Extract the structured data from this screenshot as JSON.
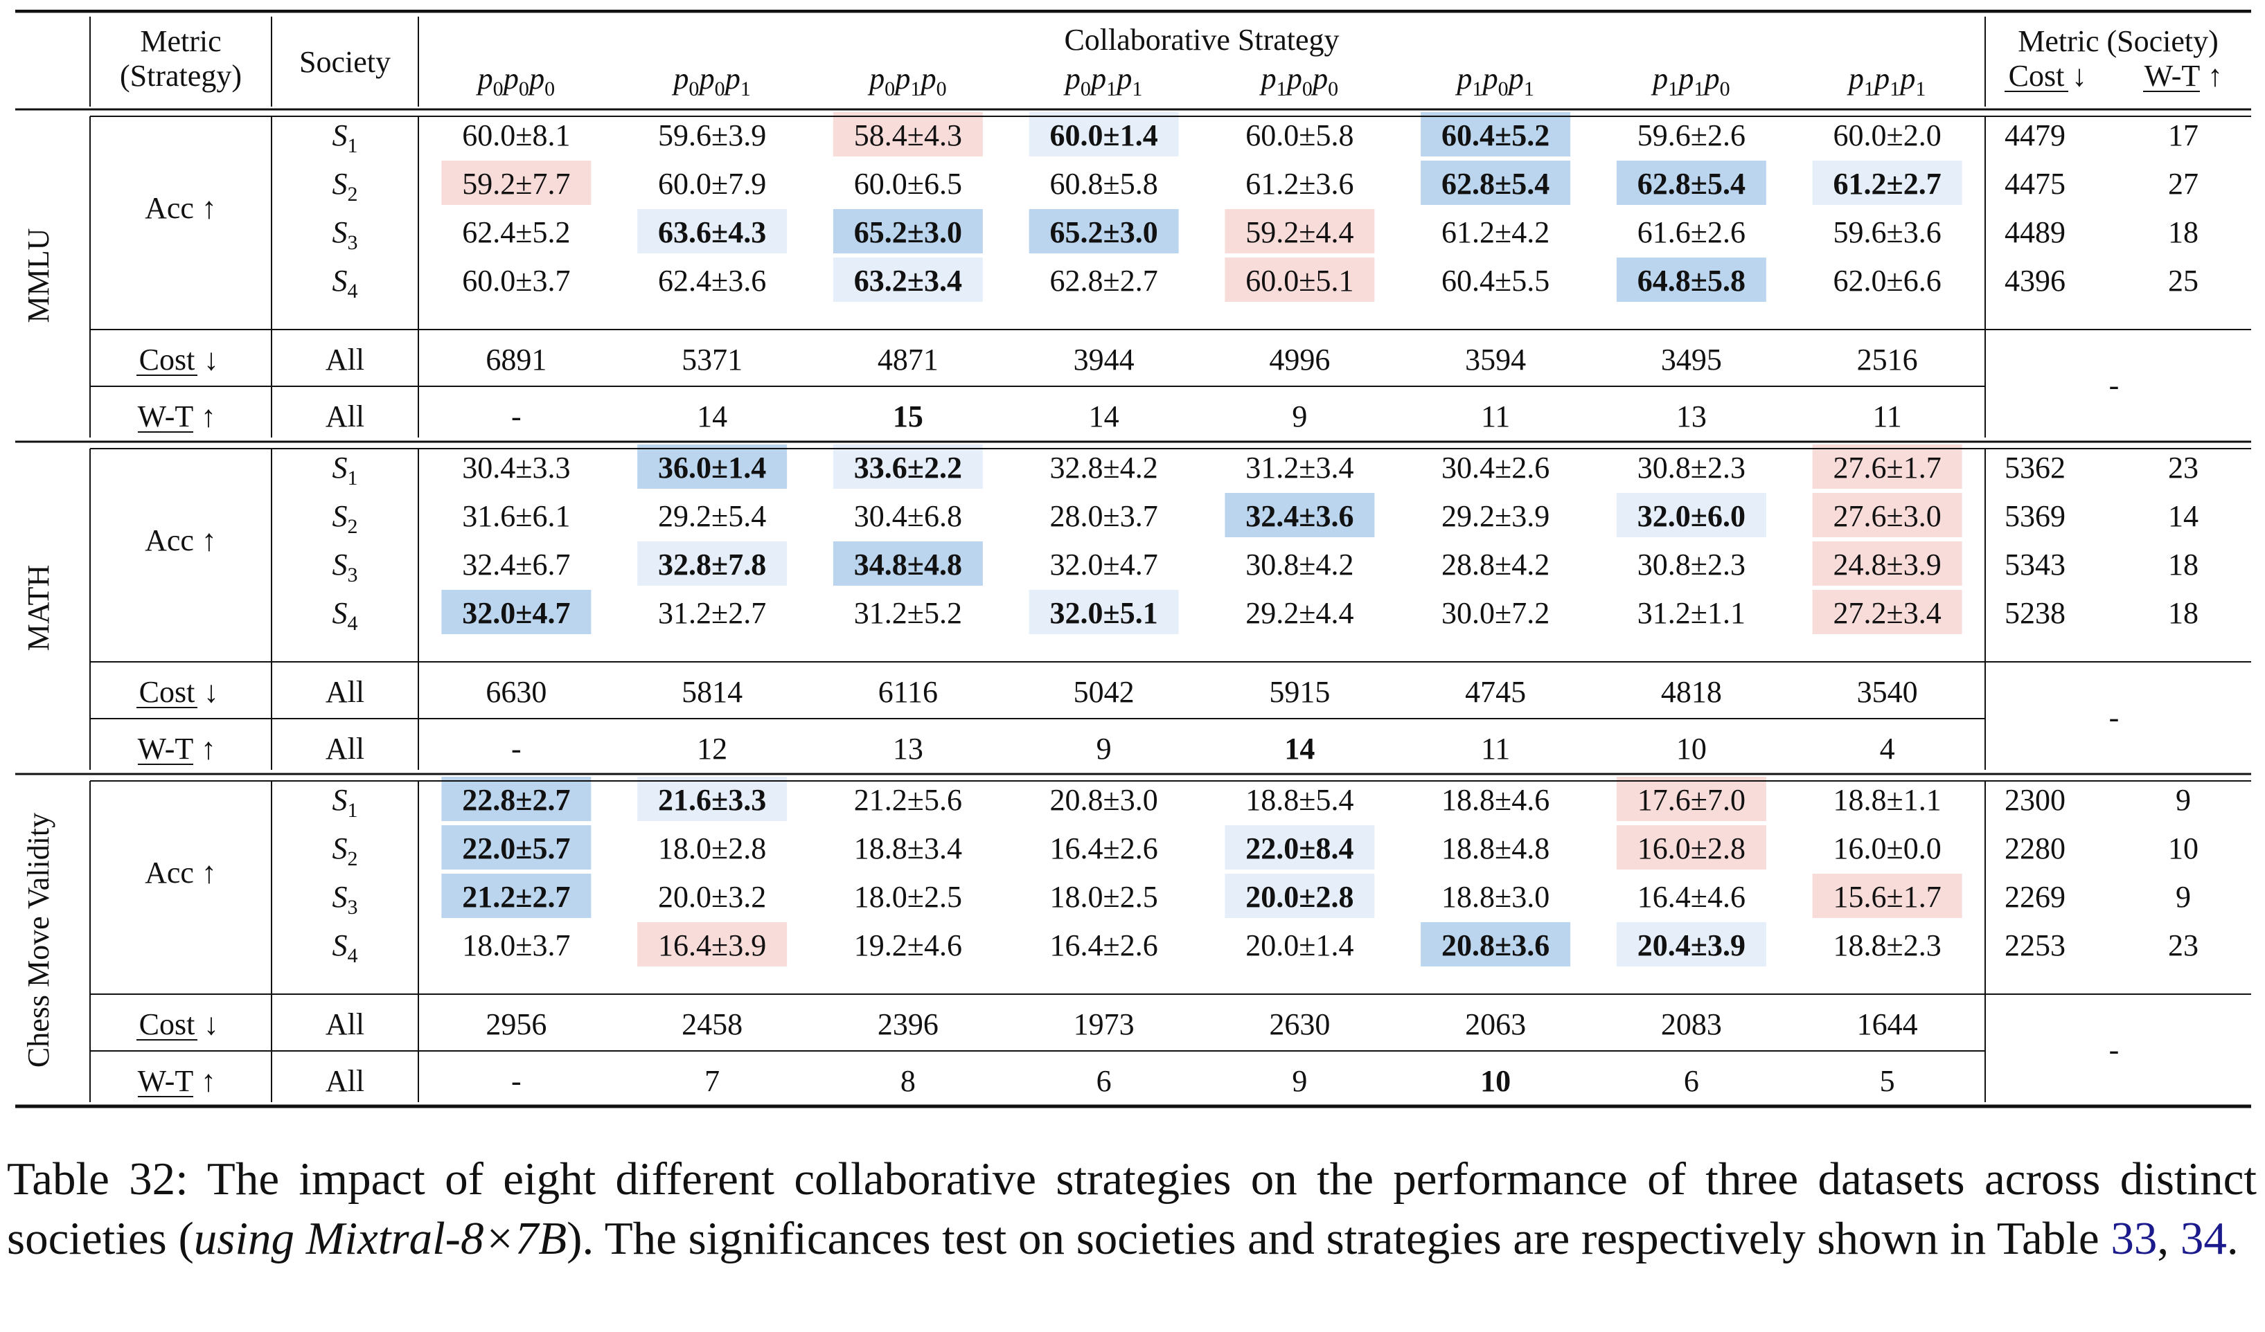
{
  "table": {
    "header": {
      "metric_strategy": [
        "Metric",
        "(Strategy)"
      ],
      "society": "Society",
      "collab_strategy": "Collaborative Strategy",
      "metric_society": "Metric (Society)",
      "cost": "Cost",
      "wt": "W-T",
      "down_arrow": "↓",
      "up_arrow": "↑",
      "strategies": [
        [
          "0",
          "0",
          "0"
        ],
        [
          "0",
          "0",
          "1"
        ],
        [
          "0",
          "1",
          "0"
        ],
        [
          "0",
          "1",
          "1"
        ],
        [
          "1",
          "0",
          "0"
        ],
        [
          "1",
          "0",
          "1"
        ],
        [
          "1",
          "1",
          "0"
        ],
        [
          "1",
          "1",
          "1"
        ]
      ]
    },
    "labels": {
      "acc": "Acc",
      "cost": "Cost",
      "wt": "W-T",
      "all": "All",
      "dash": "-",
      "society_prefix": "S"
    },
    "colors": {
      "blue_strong": "#bcd5ee",
      "blue_light": "#e6eff9",
      "red": "#f7dcda"
    },
    "sections": [
      {
        "name": "MMLU",
        "rows": [
          {
            "society": "1",
            "cells": [
              {
                "v": "60.0±8.1"
              },
              {
                "v": "59.6±3.9"
              },
              {
                "v": "58.4±4.3",
                "hl": "red"
              },
              {
                "v": "60.0±1.4",
                "hl": "blue_light",
                "bold": true
              },
              {
                "v": "60.0±5.8"
              },
              {
                "v": "60.4±5.2",
                "hl": "blue_strong",
                "bold": true
              },
              {
                "v": "59.6±2.6"
              },
              {
                "v": "60.0±2.0"
              }
            ],
            "cost": "4479",
            "wt": "17"
          },
          {
            "society": "2",
            "cells": [
              {
                "v": "59.2±7.7",
                "hl": "red"
              },
              {
                "v": "60.0±7.9"
              },
              {
                "v": "60.0±6.5"
              },
              {
                "v": "60.8±5.8"
              },
              {
                "v": "61.2±3.6"
              },
              {
                "v": "62.8±5.4",
                "hl": "blue_strong",
                "bold": true
              },
              {
                "v": "62.8±5.4",
                "hl": "blue_strong",
                "bold": true
              },
              {
                "v": "61.2±2.7",
                "hl": "blue_light",
                "bold": true
              }
            ],
            "cost": "4475",
            "wt": "27"
          },
          {
            "society": "3",
            "cells": [
              {
                "v": "62.4±5.2"
              },
              {
                "v": "63.6±4.3",
                "hl": "blue_light",
                "bold": true
              },
              {
                "v": "65.2±3.0",
                "hl": "blue_strong",
                "bold": true
              },
              {
                "v": "65.2±3.0",
                "hl": "blue_strong",
                "bold": true
              },
              {
                "v": "59.2±4.4",
                "hl": "red"
              },
              {
                "v": "61.2±4.2"
              },
              {
                "v": "61.6±2.6"
              },
              {
                "v": "59.6±3.6"
              }
            ],
            "cost": "4489",
            "wt": "18"
          },
          {
            "society": "4",
            "cells": [
              {
                "v": "60.0±3.7"
              },
              {
                "v": "62.4±3.6"
              },
              {
                "v": "63.2±3.4",
                "hl": "blue_light",
                "bold": true
              },
              {
                "v": "62.8±2.7"
              },
              {
                "v": "60.0±5.1",
                "hl": "red"
              },
              {
                "v": "60.4±5.5"
              },
              {
                "v": "64.8±5.8",
                "hl": "blue_strong",
                "bold": true
              },
              {
                "v": "62.0±6.6"
              }
            ],
            "cost": "4396",
            "wt": "25"
          }
        ],
        "cost_all": [
          "6891",
          "5371",
          "4871",
          "3944",
          "4996",
          "3594",
          "3495",
          "2516"
        ],
        "wt_all": [
          "-",
          "14",
          "15",
          "14",
          "9",
          "11",
          "13",
          "11"
        ],
        "wt_bold": [
          2
        ],
        "summary_dash": "-"
      },
      {
        "name": "MATH",
        "rows": [
          {
            "society": "1",
            "cells": [
              {
                "v": "30.4±3.3"
              },
              {
                "v": "36.0±1.4",
                "hl": "blue_strong",
                "bold": true
              },
              {
                "v": "33.6±2.2",
                "hl": "blue_light",
                "bold": true
              },
              {
                "v": "32.8±4.2"
              },
              {
                "v": "31.2±3.4"
              },
              {
                "v": "30.4±2.6"
              },
              {
                "v": "30.8±2.3"
              },
              {
                "v": "27.6±1.7",
                "hl": "red"
              }
            ],
            "cost": "5362",
            "wt": "23"
          },
          {
            "society": "2",
            "cells": [
              {
                "v": "31.6±6.1"
              },
              {
                "v": "29.2±5.4"
              },
              {
                "v": "30.4±6.8"
              },
              {
                "v": "28.0±3.7"
              },
              {
                "v": "32.4±3.6",
                "hl": "blue_strong",
                "bold": true
              },
              {
                "v": "29.2±3.9"
              },
              {
                "v": "32.0±6.0",
                "hl": "blue_light",
                "bold": true
              },
              {
                "v": "27.6±3.0",
                "hl": "red"
              }
            ],
            "cost": "5369",
            "wt": "14"
          },
          {
            "society": "3",
            "cells": [
              {
                "v": "32.4±6.7"
              },
              {
                "v": "32.8±7.8",
                "hl": "blue_light",
                "bold": true
              },
              {
                "v": "34.8±4.8",
                "hl": "blue_strong",
                "bold": true
              },
              {
                "v": "32.0±4.7"
              },
              {
                "v": "30.8±4.2"
              },
              {
                "v": "28.8±4.2"
              },
              {
                "v": "30.8±2.3"
              },
              {
                "v": "24.8±3.9",
                "hl": "red"
              }
            ],
            "cost": "5343",
            "wt": "18"
          },
          {
            "society": "4",
            "cells": [
              {
                "v": "32.0±4.7",
                "hl": "blue_strong",
                "bold": true
              },
              {
                "v": "31.2±2.7"
              },
              {
                "v": "31.2±5.2"
              },
              {
                "v": "32.0±5.1",
                "hl": "blue_light",
                "bold": true
              },
              {
                "v": "29.2±4.4"
              },
              {
                "v": "30.0±7.2"
              },
              {
                "v": "31.2±1.1"
              },
              {
                "v": "27.2±3.4",
                "hl": "red"
              }
            ],
            "cost": "5238",
            "wt": "18"
          }
        ],
        "cost_all": [
          "6630",
          "5814",
          "6116",
          "5042",
          "5915",
          "4745",
          "4818",
          "3540"
        ],
        "wt_all": [
          "-",
          "12",
          "13",
          "9",
          "14",
          "11",
          "10",
          "4"
        ],
        "wt_bold": [
          4
        ],
        "summary_dash": "-"
      },
      {
        "name": "Chess Move Validity",
        "rows": [
          {
            "society": "1",
            "cells": [
              {
                "v": "22.8±2.7",
                "hl": "blue_strong",
                "bold": true
              },
              {
                "v": "21.6±3.3",
                "hl": "blue_light",
                "bold": true
              },
              {
                "v": "21.2±5.6"
              },
              {
                "v": "20.8±3.0"
              },
              {
                "v": "18.8±5.4"
              },
              {
                "v": "18.8±4.6"
              },
              {
                "v": "17.6±7.0",
                "hl": "red"
              },
              {
                "v": "18.8±1.1"
              }
            ],
            "cost": "2300",
            "wt": "9"
          },
          {
            "society": "2",
            "cells": [
              {
                "v": "22.0±5.7",
                "hl": "blue_strong",
                "bold": true
              },
              {
                "v": "18.0±2.8"
              },
              {
                "v": "18.8±3.4"
              },
              {
                "v": "16.4±2.6"
              },
              {
                "v": "22.0±8.4",
                "hl": "blue_light",
                "bold": true
              },
              {
                "v": "18.8±4.8"
              },
              {
                "v": "16.0±2.8",
                "hl": "red"
              },
              {
                "v": "16.0±0.0"
              }
            ],
            "cost": "2280",
            "wt": "10"
          },
          {
            "society": "3",
            "cells": [
              {
                "v": "21.2±2.7",
                "hl": "blue_strong",
                "bold": true
              },
              {
                "v": "20.0±3.2"
              },
              {
                "v": "18.0±2.5"
              },
              {
                "v": "18.0±2.5"
              },
              {
                "v": "20.0±2.8",
                "hl": "blue_light",
                "bold": true
              },
              {
                "v": "18.8±3.0"
              },
              {
                "v": "16.4±4.6"
              },
              {
                "v": "15.6±1.7",
                "hl": "red"
              }
            ],
            "cost": "2269",
            "wt": "9"
          },
          {
            "society": "4",
            "cells": [
              {
                "v": "18.0±3.7"
              },
              {
                "v": "16.4±3.9",
                "hl": "red"
              },
              {
                "v": "19.2±4.6"
              },
              {
                "v": "16.4±2.6"
              },
              {
                "v": "20.0±1.4"
              },
              {
                "v": "20.8±3.6",
                "hl": "blue_strong",
                "bold": true
              },
              {
                "v": "20.4±3.9",
                "hl": "blue_light",
                "bold": true
              },
              {
                "v": "18.8±2.3"
              }
            ],
            "cost": "2253",
            "wt": "23"
          }
        ],
        "cost_all": [
          "2956",
          "2458",
          "2396",
          "1973",
          "2630",
          "2063",
          "2083",
          "1644"
        ],
        "wt_all": [
          "-",
          "7",
          "8",
          "6",
          "9",
          "10",
          "6",
          "5"
        ],
        "wt_bold": [
          5
        ],
        "summary_dash": "-"
      }
    ]
  },
  "caption": {
    "part1": "Table 32: The impact of eight different collaborative strategies on the performance of three datasets across distinct societies (",
    "italic": "using Mixtral-8×7B",
    "part2": "). The significances test on societies and strategies are respectively shown in Table ",
    "ref1": "33",
    "sep": ", ",
    "ref2": "34",
    "end": "."
  }
}
